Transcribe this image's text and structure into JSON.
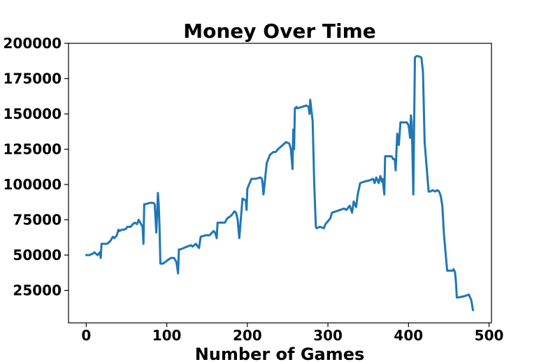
{
  "chart_data": {
    "type": "line",
    "title": "Money Over Time",
    "xlabel": "Number of Games",
    "ylabel": "",
    "xlim": [
      -22,
      503
    ],
    "ylim": [
      2000,
      200000
    ],
    "x_ticks": [
      0,
      100,
      200,
      300,
      400,
      500
    ],
    "y_ticks": [
      25000,
      50000,
      75000,
      100000,
      125000,
      150000,
      175000,
      200000
    ],
    "x_tick_labels": [
      "0",
      "100",
      "200",
      "300",
      "400",
      "500"
    ],
    "y_tick_labels": [
      "25000",
      "50000",
      "75000",
      "100000",
      "125000",
      "150000",
      "175000",
      "200000"
    ],
    "grid": false,
    "line_color": "#1f77b4",
    "series": [
      {
        "x": [
          0,
          4,
          8,
          10,
          14,
          17,
          18,
          19,
          20,
          26,
          30,
          33,
          35,
          38,
          40,
          41,
          44,
          46,
          49,
          51,
          55,
          58,
          60,
          63,
          65,
          68,
          70,
          71,
          72,
          73,
          79,
          83,
          85,
          87,
          88,
          89,
          90,
          91,
          92,
          93,
          95,
          98,
          100,
          105,
          109,
          112,
          114,
          115,
          117,
          125,
          130,
          132,
          136,
          140,
          142,
          148,
          153,
          158,
          160,
          162,
          163,
          170,
          172,
          175,
          180,
          184,
          186,
          188,
          189,
          190,
          194,
          197,
          198,
          199,
          200,
          205,
          210,
          216,
          218,
          219,
          220,
          224,
          228,
          232,
          235,
          238,
          240,
          242,
          248,
          252,
          254,
          256,
          257,
          258,
          259,
          260,
          261,
          262,
          268,
          273,
          276,
          277,
          278,
          279,
          281,
          283,
          285,
          286,
          290,
          295,
          297,
          300,
          303,
          305,
          310,
          315,
          320,
          323,
          327,
          330,
          332,
          335,
          337,
          340,
          345,
          352,
          356,
          358,
          360,
          363,
          365,
          367,
          368,
          370,
          371,
          375,
          379,
          381,
          383,
          384,
          386,
          388,
          390,
          393,
          396,
          398,
          400,
          401,
          402,
          403,
          404,
          405,
          406,
          408,
          410,
          412,
          416,
          418,
          420,
          425,
          427,
          430,
          433,
          436,
          438,
          440,
          442,
          444,
          448,
          452,
          455,
          456,
          457,
          458,
          459,
          460,
          462,
          470,
          475,
          478,
          480
        ],
        "y": [
          50000,
          50000,
          51000,
          52000,
          50000,
          52000,
          48000,
          58000,
          58000,
          58000,
          60000,
          63000,
          62000,
          64000,
          68000,
          67000,
          68000,
          68000,
          68500,
          70000,
          70000,
          72000,
          73000,
          72000,
          75000,
          72000,
          70000,
          58000,
          86000,
          86000,
          87000,
          87000,
          86000,
          66000,
          80000,
          94000,
          85000,
          70000,
          44000,
          44000,
          44000,
          45000,
          46000,
          48000,
          48000,
          45000,
          37000,
          54000,
          54000,
          56000,
          57000,
          56000,
          58000,
          55000,
          63000,
          64000,
          64000,
          67000,
          66000,
          62000,
          73000,
          73000,
          73000,
          76000,
          78000,
          81000,
          80000,
          75000,
          68000,
          62000,
          90000,
          89000,
          89000,
          82000,
          97000,
          104000,
          104000,
          105000,
          104000,
          100000,
          93000,
          115000,
          121000,
          123000,
          123000,
          125000,
          126000,
          127000,
          130000,
          129000,
          125000,
          111000,
          139000,
          125000,
          154000,
          154000,
          155000,
          154000,
          155000,
          156000,
          155000,
          150000,
          160000,
          155000,
          145000,
          100000,
          70000,
          69000,
          70000,
          69000,
          72000,
          74000,
          76000,
          80000,
          81000,
          82000,
          83000,
          82000,
          85000,
          80000,
          88000,
          84000,
          93000,
          101000,
          102000,
          103000,
          104000,
          101000,
          105000,
          101000,
          106000,
          102000,
          104000,
          93000,
          120000,
          120000,
          120000,
          118000,
          118000,
          110000,
          136000,
          128000,
          144000,
          144000,
          144000,
          144000,
          142000,
          138000,
          133000,
          149000,
          144000,
          120000,
          93000,
          190000,
          191000,
          191000,
          190000,
          180000,
          130000,
          95000,
          95000,
          96000,
          95000,
          96000,
          95000,
          92000,
          85000,
          65000,
          39000,
          39000,
          39000,
          40000,
          39000,
          37000,
          30000,
          20000,
          20000,
          21000,
          22000,
          18000,
          11000
        ]
      }
    ]
  }
}
